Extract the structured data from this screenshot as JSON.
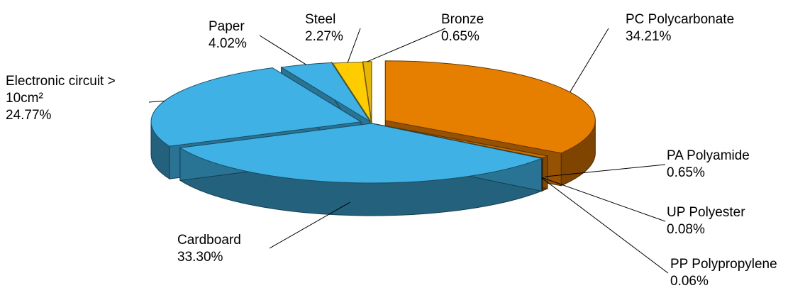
{
  "chart_data": {
    "type": "pie",
    "title": "",
    "legend": "none",
    "slices": [
      {
        "label": "PC Polycarbonate",
        "value": 34.21,
        "value_label": "34.21%",
        "color": "#E67E00"
      },
      {
        "label": "PA Polyamide",
        "value": 0.65,
        "value_label": "0.65%",
        "color": "#C86E00"
      },
      {
        "label": "UP Polyester",
        "value": 0.08,
        "value_label": "0.08%",
        "color": "#B05E00"
      },
      {
        "label": "PP Polypropylene",
        "value": 0.06,
        "value_label": "0.06%",
        "color": "#9A5200"
      },
      {
        "label": "Cardboard",
        "value": 33.3,
        "value_label": "33.30%",
        "color": "#3FB1E4"
      },
      {
        "label": "Electronic circuit > 10cm²",
        "value": 24.77,
        "value_label": "24.77%",
        "color": "#3FB1E4"
      },
      {
        "label": "Paper",
        "value": 4.02,
        "value_label": "4.02%",
        "color": "#3FB1E4"
      },
      {
        "label": "Steel",
        "value": 2.27,
        "value_label": "2.27%",
        "color": "#FFCC00"
      },
      {
        "label": "Bronze",
        "value": 0.65,
        "value_label": "0.65%",
        "color": "#E8B800"
      }
    ]
  }
}
